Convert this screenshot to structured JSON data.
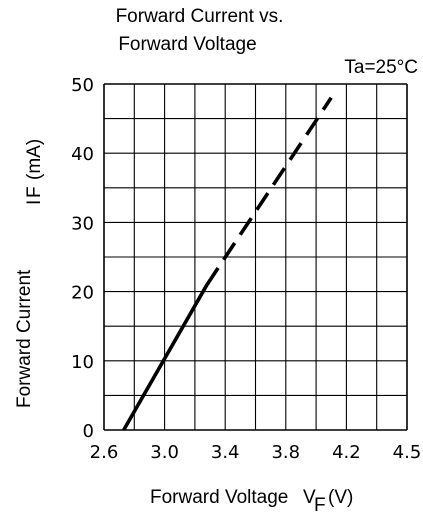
{
  "chart_data": {
    "type": "line",
    "title_line1": "Forward Current vs.",
    "title_line2": "Forward Voltage",
    "annotation": "Ta=25°C",
    "xlabel": "Forward Voltage",
    "xlabel_symbol": "V",
    "xlabel_sub": "F",
    "xlabel_unit": "(V)",
    "ylabel": "Forward Current",
    "ylabel_symbol": "I",
    "ylabel_sub": "F",
    "ylabel_unit": "(mA)",
    "x_ticks": [
      "2.6",
      "3.0",
      "3.4",
      "3.8",
      "4.2",
      "4.5"
    ],
    "y_ticks": [
      "0",
      "10",
      "20",
      "30",
      "40",
      "50"
    ],
    "xlim": [
      2.6,
      4.5
    ],
    "ylim": [
      0,
      50
    ],
    "grid": true,
    "series": [
      {
        "style": "solid",
        "x": [
          2.73,
          3.28
        ],
        "y": [
          0,
          21
        ]
      },
      {
        "style": "dashed",
        "x": [
          3.28,
          4.1
        ],
        "y": [
          21,
          48
        ]
      }
    ]
  }
}
